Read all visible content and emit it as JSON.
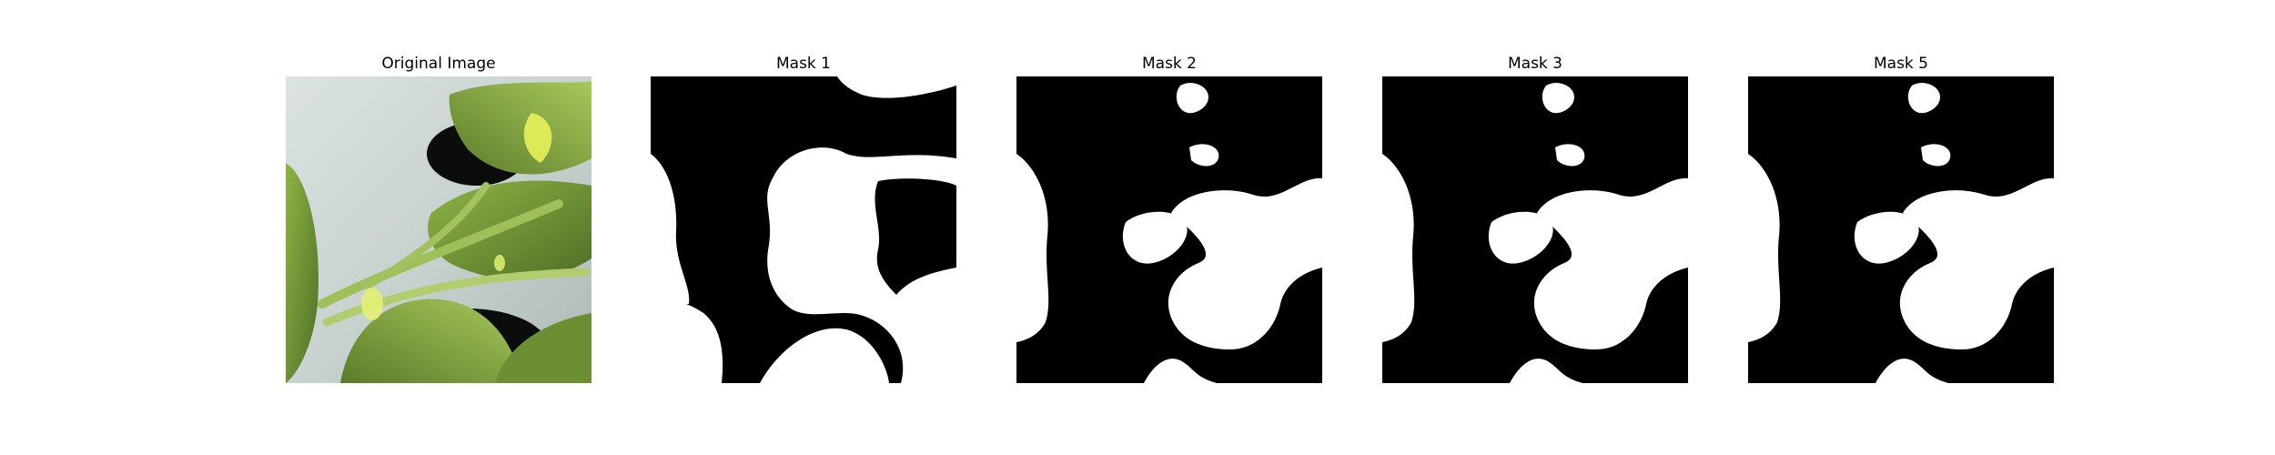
{
  "figure": {
    "panels": [
      {
        "title": "Original Image"
      },
      {
        "title": "Mask 1"
      },
      {
        "title": "Mask 2"
      },
      {
        "title": "Mask 3"
      },
      {
        "title": "Mask 5"
      }
    ]
  },
  "colors": {
    "mask_background": "#000000",
    "mask_foreground": "#ffffff",
    "leaf_dark": "#4f6f26",
    "leaf_mid": "#7fa23d",
    "leaf_light": "#b9d46a",
    "highlight": "#e7f25a",
    "wall": "#c9d2cf",
    "pot": "#0b0d0c"
  }
}
